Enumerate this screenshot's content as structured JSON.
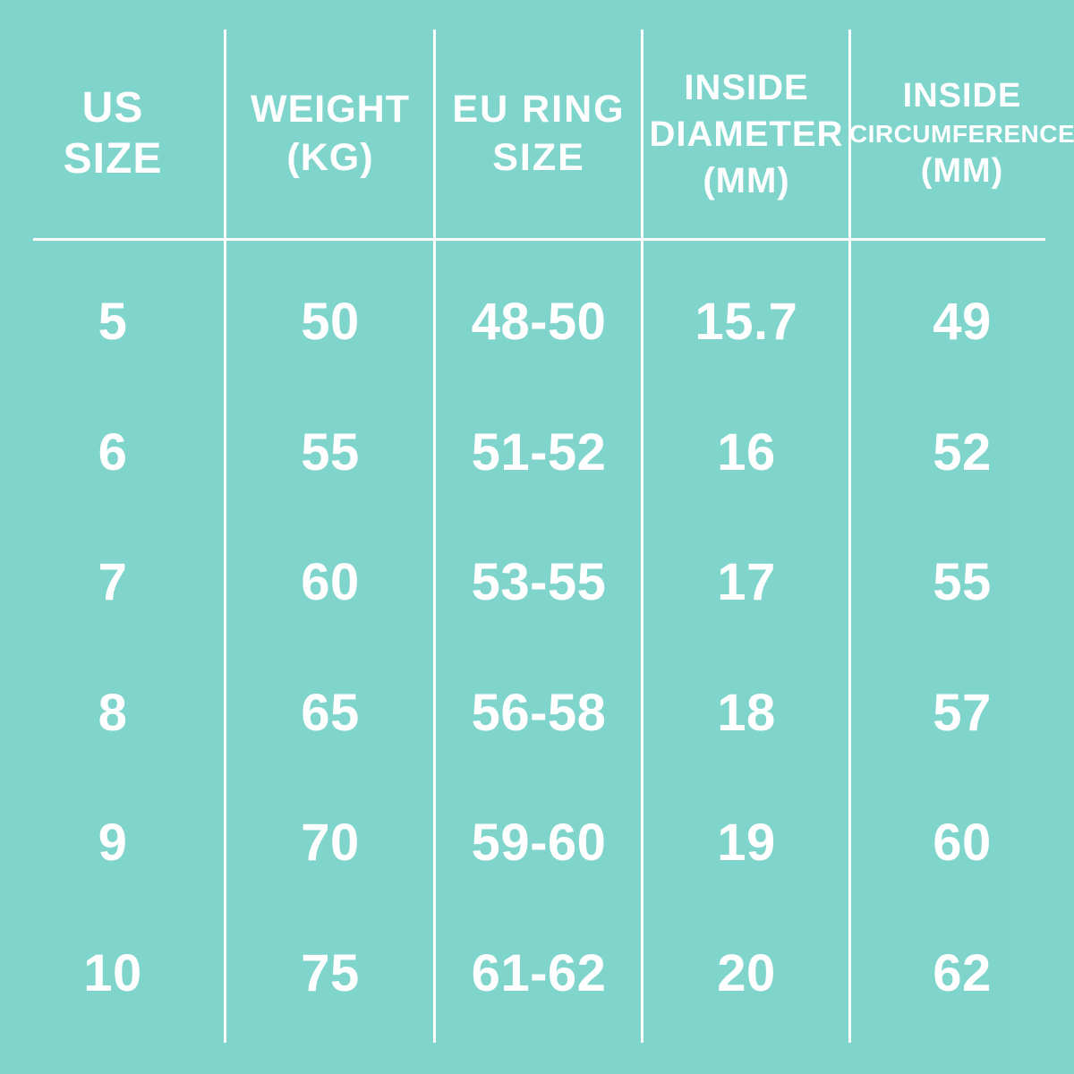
{
  "colors": {
    "background": "#7fd5cc",
    "text": "#fefefe",
    "grid_lines": "#fdfdfd"
  },
  "table": {
    "columns": [
      {
        "id": "us-size",
        "header_lines": [
          "US",
          "SIZE"
        ]
      },
      {
        "id": "weight-kg",
        "header_lines": [
          "WEIGHT",
          "(KG)"
        ]
      },
      {
        "id": "eu-ring-size",
        "header_lines": [
          "EU RING",
          "SIZE"
        ]
      },
      {
        "id": "inside-diameter-mm",
        "header_lines": [
          "INSIDE",
          "DIAMETER",
          "(MM)"
        ]
      },
      {
        "id": "inside-circumference-mm",
        "header_lines": [
          "INSIDE",
          "CIRCUMFERENCE",
          "(MM)"
        ]
      }
    ],
    "rows": [
      [
        "5",
        "50",
        "48-50",
        "15.7",
        "49"
      ],
      [
        "6",
        "55",
        "51-52",
        "16",
        "52"
      ],
      [
        "7",
        "60",
        "53-55",
        "17",
        "55"
      ],
      [
        "8",
        "65",
        "56-58",
        "18",
        "57"
      ],
      [
        "9",
        "70",
        "59-60",
        "19",
        "60"
      ],
      [
        "10",
        "75",
        "61-62",
        "20",
        "62"
      ]
    ]
  },
  "chart_data": {
    "type": "table",
    "columns": [
      "US SIZE",
      "WEIGHT (KG)",
      "EU RING SIZE",
      "INSIDE DIAMETER (MM)",
      "INSIDE CIRCUMFERENCE (MM)"
    ],
    "rows": [
      [
        "5",
        "50",
        "48-50",
        "15.7",
        "49"
      ],
      [
        "6",
        "55",
        "51-52",
        "16",
        "52"
      ],
      [
        "7",
        "60",
        "53-55",
        "17",
        "55"
      ],
      [
        "8",
        "65",
        "56-58",
        "18",
        "57"
      ],
      [
        "9",
        "70",
        "59-60",
        "19",
        "60"
      ],
      [
        "10",
        "75",
        "61-62",
        "20",
        "62"
      ]
    ],
    "layout_hints": {
      "grid": "vertical column dividers plus one horizontal rule under header",
      "background": "#7fd5cc",
      "text_color": "#fefefe"
    }
  }
}
